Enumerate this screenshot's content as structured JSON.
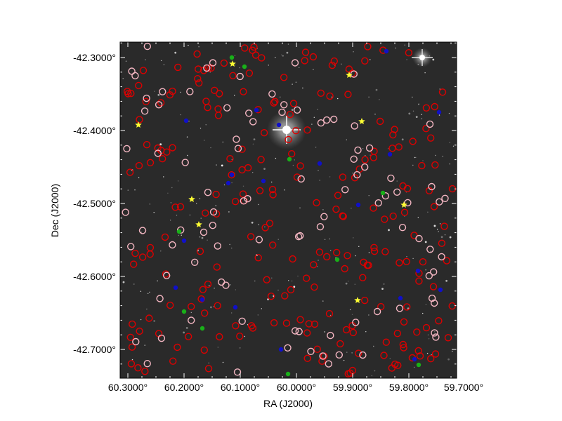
{
  "figure": {
    "xlabel": "RA (J2000)",
    "ylabel": "Dec (J2000)",
    "x_ticks": [
      "60.3000°",
      "60.2000°",
      "60.1000°",
      "60.0000°",
      "59.9000°",
      "59.8000°",
      "59.7000°"
    ],
    "y_ticks": [
      "-42.3000°",
      "-42.4000°",
      "-42.5000°",
      "-42.6000°",
      "-42.7000°"
    ],
    "background_color": "#2a2a2a",
    "marker_colors": {
      "red_circle": "#dd0000",
      "pink_circle": "#f4b6c2",
      "blue_dot": "#1010c8",
      "green_dot": "#19b019",
      "yellow_star": "#ffff33"
    }
  }
}
